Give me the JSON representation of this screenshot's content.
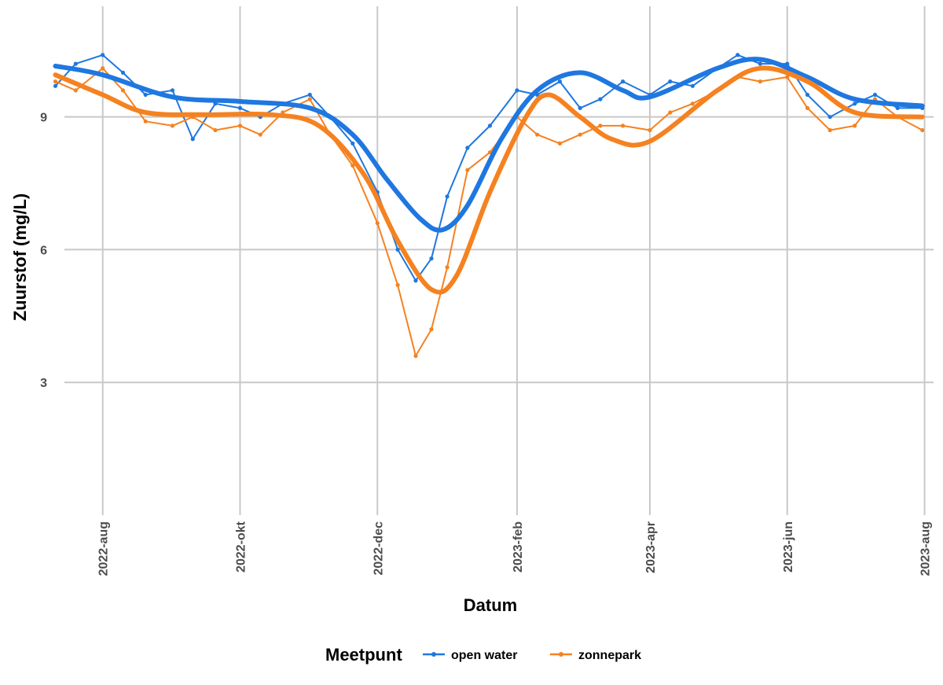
{
  "chart_data": {
    "type": "line",
    "xlabel": "Datum",
    "ylabel": "Zuurstof (mg/L)",
    "x_ticks": [
      "2022-aug",
      "2022-okt",
      "2022-dec",
      "2023-feb",
      "2023-apr",
      "2023-jun",
      "2023-aug"
    ],
    "y_ticks": [
      3,
      6,
      9
    ],
    "xlim": [
      "2022-07-15",
      "2023-08-05"
    ],
    "ylim": [
      0,
      11.5
    ],
    "grid": true,
    "legend": {
      "title": "Meetpunt",
      "position": "bottom",
      "entries": [
        "open water",
        "zonnepark"
      ]
    },
    "series": [
      {
        "name": "open water",
        "color": "#1f77e0",
        "observed": [
          [
            "2022-07-11",
            9.7
          ],
          [
            "2022-07-20",
            10.2
          ],
          [
            "2022-08-01",
            10.4
          ],
          [
            "2022-08-10",
            10.0
          ],
          [
            "2022-08-20",
            9.5
          ],
          [
            "2022-09-01",
            9.6
          ],
          [
            "2022-09-10",
            8.5
          ],
          [
            "2022-09-20",
            9.3
          ],
          [
            "2022-10-01",
            9.2
          ],
          [
            "2022-10-10",
            9.0
          ],
          [
            "2022-10-20",
            9.3
          ],
          [
            "2022-11-01",
            9.5
          ],
          [
            "2022-11-10",
            9.0
          ],
          [
            "2022-11-20",
            8.4
          ],
          [
            "2022-12-01",
            7.3
          ],
          [
            "2022-12-10",
            6.0
          ],
          [
            "2022-12-18",
            5.3
          ],
          [
            "2022-12-25",
            5.8
          ],
          [
            "2023-01-01",
            7.2
          ],
          [
            "2023-01-10",
            8.3
          ],
          [
            "2023-01-20",
            8.8
          ],
          [
            "2023-02-01",
            9.6
          ],
          [
            "2023-02-10",
            9.5
          ],
          [
            "2023-02-20",
            9.8
          ],
          [
            "2023-03-01",
            9.2
          ],
          [
            "2023-03-10",
            9.4
          ],
          [
            "2023-03-20",
            9.8
          ],
          [
            "2023-04-01",
            9.5
          ],
          [
            "2023-04-10",
            9.8
          ],
          [
            "2023-04-20",
            9.7
          ],
          [
            "2023-05-01",
            10.1
          ],
          [
            "2023-05-10",
            10.4
          ],
          [
            "2023-05-20",
            10.2
          ],
          [
            "2023-06-01",
            10.2
          ],
          [
            "2023-06-10",
            9.5
          ],
          [
            "2023-06-20",
            9.0
          ],
          [
            "2023-07-01",
            9.3
          ],
          [
            "2023-07-10",
            9.5
          ],
          [
            "2023-07-20",
            9.2
          ],
          [
            "2023-07-31",
            9.2
          ]
        ],
        "smooth": [
          [
            "2022-07-11",
            10.15
          ],
          [
            "2022-08-01",
            9.95
          ],
          [
            "2022-09-01",
            9.45
          ],
          [
            "2022-10-01",
            9.35
          ],
          [
            "2022-11-01",
            9.2
          ],
          [
            "2022-11-20",
            8.6
          ],
          [
            "2022-12-05",
            7.6
          ],
          [
            "2022-12-20",
            6.7
          ],
          [
            "2022-12-30",
            6.45
          ],
          [
            "2023-01-10",
            7.0
          ],
          [
            "2023-01-25",
            8.5
          ],
          [
            "2023-02-10",
            9.6
          ],
          [
            "2023-03-01",
            10.0
          ],
          [
            "2023-03-20",
            9.6
          ],
          [
            "2023-04-01",
            9.45
          ],
          [
            "2023-05-01",
            10.1
          ],
          [
            "2023-05-20",
            10.3
          ],
          [
            "2023-06-10",
            9.9
          ],
          [
            "2023-07-01",
            9.4
          ],
          [
            "2023-07-31",
            9.25
          ]
        ]
      },
      {
        "name": "zonnepark",
        "color": "#f58220",
        "observed": [
          [
            "2022-07-11",
            9.8
          ],
          [
            "2022-07-20",
            9.6
          ],
          [
            "2022-08-01",
            10.1
          ],
          [
            "2022-08-10",
            9.6
          ],
          [
            "2022-08-20",
            8.9
          ],
          [
            "2022-09-01",
            8.8
          ],
          [
            "2022-09-10",
            9.0
          ],
          [
            "2022-09-20",
            8.7
          ],
          [
            "2022-10-01",
            8.8
          ],
          [
            "2022-10-10",
            8.6
          ],
          [
            "2022-10-20",
            9.1
          ],
          [
            "2022-11-01",
            9.4
          ],
          [
            "2022-11-10",
            8.6
          ],
          [
            "2022-11-20",
            7.9
          ],
          [
            "2022-12-01",
            6.6
          ],
          [
            "2022-12-10",
            5.2
          ],
          [
            "2022-12-18",
            3.6
          ],
          [
            "2022-12-25",
            4.2
          ],
          [
            "2023-01-01",
            5.6
          ],
          [
            "2023-01-10",
            7.8
          ],
          [
            "2023-01-20",
            8.2
          ],
          [
            "2023-02-01",
            9.0
          ],
          [
            "2023-02-10",
            8.6
          ],
          [
            "2023-02-20",
            8.4
          ],
          [
            "2023-03-01",
            8.6
          ],
          [
            "2023-03-10",
            8.8
          ],
          [
            "2023-03-20",
            8.8
          ],
          [
            "2023-04-01",
            8.7
          ],
          [
            "2023-04-10",
            9.1
          ],
          [
            "2023-04-20",
            9.3
          ],
          [
            "2023-05-01",
            9.6
          ],
          [
            "2023-05-10",
            9.9
          ],
          [
            "2023-05-20",
            9.8
          ],
          [
            "2023-06-01",
            9.9
          ],
          [
            "2023-06-10",
            9.2
          ],
          [
            "2023-06-20",
            8.7
          ],
          [
            "2023-07-01",
            8.8
          ],
          [
            "2023-07-10",
            9.4
          ],
          [
            "2023-07-20",
            9.0
          ],
          [
            "2023-07-31",
            8.7
          ]
        ],
        "smooth": [
          [
            "2022-07-11",
            9.95
          ],
          [
            "2022-08-01",
            9.5
          ],
          [
            "2022-08-20",
            9.1
          ],
          [
            "2022-09-15",
            9.05
          ],
          [
            "2022-10-15",
            9.05
          ],
          [
            "2022-11-05",
            8.8
          ],
          [
            "2022-11-25",
            7.7
          ],
          [
            "2022-12-10",
            6.2
          ],
          [
            "2022-12-25",
            5.1
          ],
          [
            "2023-01-05",
            5.4
          ],
          [
            "2023-01-20",
            7.3
          ],
          [
            "2023-02-05",
            9.0
          ],
          [
            "2023-02-15",
            9.5
          ],
          [
            "2023-03-01",
            9.0
          ],
          [
            "2023-03-15",
            8.5
          ],
          [
            "2023-04-01",
            8.45
          ],
          [
            "2023-05-01",
            9.6
          ],
          [
            "2023-05-20",
            10.1
          ],
          [
            "2023-06-10",
            9.8
          ],
          [
            "2023-07-01",
            9.1
          ],
          [
            "2023-07-31",
            9.0
          ]
        ]
      }
    ]
  }
}
